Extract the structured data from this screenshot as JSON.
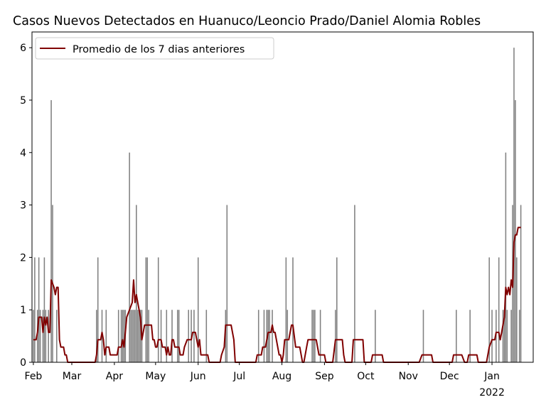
{
  "chart_data": {
    "type": "bar",
    "title": "Casos Nuevos Detectados en Huanuco/Leoncio Prado/Daniel Alomia Robles",
    "xlabel": "",
    "ylabel": "",
    "ylim": [
      0,
      6.3
    ],
    "y_ticks": [
      "0",
      "1",
      "2",
      "3",
      "4",
      "5",
      "6"
    ],
    "x_start": "2021-01-31",
    "x_end": "2022-01-31",
    "x_ticks": [
      {
        "date": "2021-02-01",
        "label": "Feb"
      },
      {
        "date": "2021-03-01",
        "label": "Mar"
      },
      {
        "date": "2021-04-01",
        "label": "Apr"
      },
      {
        "date": "2021-05-01",
        "label": "May"
      },
      {
        "date": "2021-06-01",
        "label": "Jun"
      },
      {
        "date": "2021-07-01",
        "label": "Jul"
      },
      {
        "date": "2021-08-01",
        "label": "Aug"
      },
      {
        "date": "2021-09-01",
        "label": "Sep"
      },
      {
        "date": "2021-10-01",
        "label": "Oct"
      },
      {
        "date": "2021-11-01",
        "label": "Nov"
      },
      {
        "date": "2021-12-01",
        "label": "Dec"
      },
      {
        "date": "2022-01-01",
        "label": "Jan"
      }
    ],
    "x_year_label": {
      "date": "2022-01-01",
      "label": "2022"
    },
    "grid": false,
    "legend": {
      "position": "upper left",
      "entries": [
        "Promedio de los 7 dias anteriores"
      ]
    },
    "colors": {
      "bars": "#808080",
      "line": "#800000"
    },
    "series": [
      {
        "kind": "bars",
        "points": [
          [
            "2021-02-01",
            1
          ],
          [
            "2021-02-02",
            2
          ],
          [
            "2021-02-04",
            1
          ],
          [
            "2021-02-05",
            2
          ],
          [
            "2021-02-06",
            1
          ],
          [
            "2021-02-08",
            1
          ],
          [
            "2021-02-09",
            2
          ],
          [
            "2021-02-10",
            1
          ],
          [
            "2021-02-12",
            1
          ],
          [
            "2021-02-14",
            5
          ],
          [
            "2021-02-15",
            3
          ],
          [
            "2021-02-18",
            1
          ],
          [
            "2021-03-19",
            1
          ],
          [
            "2021-03-20",
            2
          ],
          [
            "2021-03-23",
            1
          ],
          [
            "2021-03-26",
            1
          ],
          [
            "2021-04-04",
            1
          ],
          [
            "2021-04-06",
            1
          ],
          [
            "2021-04-07",
            1
          ],
          [
            "2021-04-08",
            1
          ],
          [
            "2021-04-09",
            1
          ],
          [
            "2021-04-12",
            4
          ],
          [
            "2021-04-13",
            1
          ],
          [
            "2021-04-14",
            1
          ],
          [
            "2021-04-15",
            1
          ],
          [
            "2021-04-16",
            1
          ],
          [
            "2021-04-17",
            3
          ],
          [
            "2021-04-18",
            1
          ],
          [
            "2021-04-19",
            1
          ],
          [
            "2021-04-20",
            1
          ],
          [
            "2021-04-21",
            1
          ],
          [
            "2021-04-24",
            2
          ],
          [
            "2021-04-25",
            2
          ],
          [
            "2021-04-26",
            1
          ],
          [
            "2021-05-03",
            2
          ],
          [
            "2021-05-05",
            1
          ],
          [
            "2021-05-09",
            1
          ],
          [
            "2021-05-13",
            1
          ],
          [
            "2021-05-17",
            1
          ],
          [
            "2021-05-18",
            1
          ],
          [
            "2021-05-25",
            1
          ],
          [
            "2021-05-27",
            1
          ],
          [
            "2021-05-29",
            1
          ],
          [
            "2021-06-01",
            2
          ],
          [
            "2021-06-07",
            1
          ],
          [
            "2021-06-21",
            1
          ],
          [
            "2021-06-22",
            3
          ],
          [
            "2021-07-15",
            1
          ],
          [
            "2021-07-19",
            1
          ],
          [
            "2021-07-21",
            1
          ],
          [
            "2021-07-22",
            1
          ],
          [
            "2021-07-23",
            1
          ],
          [
            "2021-07-25",
            1
          ],
          [
            "2021-08-04",
            2
          ],
          [
            "2021-08-05",
            1
          ],
          [
            "2021-08-09",
            2
          ],
          [
            "2021-08-23",
            1
          ],
          [
            "2021-08-24",
            1
          ],
          [
            "2021-08-25",
            1
          ],
          [
            "2021-08-29",
            1
          ],
          [
            "2021-09-09",
            1
          ],
          [
            "2021-09-10",
            2
          ],
          [
            "2021-09-23",
            3
          ],
          [
            "2021-10-08",
            1
          ],
          [
            "2021-11-12",
            1
          ],
          [
            "2021-12-06",
            1
          ],
          [
            "2021-12-16",
            1
          ],
          [
            "2021-12-30",
            2
          ],
          [
            "2022-01-01",
            1
          ],
          [
            "2022-01-04",
            1
          ],
          [
            "2022-01-06",
            2
          ],
          [
            "2022-01-09",
            1
          ],
          [
            "2022-01-10",
            1
          ],
          [
            "2022-01-11",
            4
          ],
          [
            "2022-01-12",
            1
          ],
          [
            "2022-01-15",
            1
          ],
          [
            "2022-01-16",
            3
          ],
          [
            "2022-01-17",
            6
          ],
          [
            "2022-01-18",
            5
          ],
          [
            "2022-01-19",
            2
          ],
          [
            "2022-01-21",
            1
          ],
          [
            "2022-01-22",
            3
          ]
        ]
      },
      {
        "kind": "line",
        "name": "Promedio de los 7 dias anteriores",
        "points": [
          [
            "2021-02-01",
            0.43
          ],
          [
            "2021-02-03",
            0.43
          ],
          [
            "2021-02-04",
            0.57
          ],
          [
            "2021-02-05",
            0.86
          ],
          [
            "2021-02-07",
            0.86
          ],
          [
            "2021-02-08",
            0.57
          ],
          [
            "2021-02-09",
            0.86
          ],
          [
            "2021-02-10",
            0.71
          ],
          [
            "2021-02-11",
            0.86
          ],
          [
            "2021-02-12",
            0.57
          ],
          [
            "2021-02-13",
            0.57
          ],
          [
            "2021-02-14",
            1.57
          ],
          [
            "2021-02-16",
            1.43
          ],
          [
            "2021-02-17",
            1.29
          ],
          [
            "2021-02-18",
            1.43
          ],
          [
            "2021-02-19",
            1.43
          ],
          [
            "2021-02-20",
            0.43
          ],
          [
            "2021-02-21",
            0.29
          ],
          [
            "2021-02-23",
            0.29
          ],
          [
            "2021-02-24",
            0.14
          ],
          [
            "2021-02-25",
            0.14
          ],
          [
            "2021-02-26",
            0
          ],
          [
            "2021-03-18",
            0
          ],
          [
            "2021-03-19",
            0.14
          ],
          [
            "2021-03-20",
            0.43
          ],
          [
            "2021-03-22",
            0.43
          ],
          [
            "2021-03-23",
            0.57
          ],
          [
            "2021-03-24",
            0.43
          ],
          [
            "2021-03-25",
            0.14
          ],
          [
            "2021-03-26",
            0.29
          ],
          [
            "2021-03-28",
            0.29
          ],
          [
            "2021-03-29",
            0.14
          ],
          [
            "2021-04-03",
            0.14
          ],
          [
            "2021-04-04",
            0.29
          ],
          [
            "2021-04-06",
            0.29
          ],
          [
            "2021-04-07",
            0.43
          ],
          [
            "2021-04-08",
            0.29
          ],
          [
            "2021-04-10",
            0.86
          ],
          [
            "2021-04-12",
            1.0
          ],
          [
            "2021-04-14",
            1.14
          ],
          [
            "2021-04-15",
            1.57
          ],
          [
            "2021-04-16",
            1.14
          ],
          [
            "2021-04-17",
            1.29
          ],
          [
            "2021-04-18",
            1.14
          ],
          [
            "2021-04-20",
            0.86
          ],
          [
            "2021-04-21",
            0.43
          ],
          [
            "2021-04-22",
            0.57
          ],
          [
            "2021-04-23",
            0.71
          ],
          [
            "2021-04-28",
            0.71
          ],
          [
            "2021-04-29",
            0.43
          ],
          [
            "2021-04-30",
            0.43
          ],
          [
            "2021-05-01",
            0.29
          ],
          [
            "2021-05-02",
            0.29
          ],
          [
            "2021-05-03",
            0.43
          ],
          [
            "2021-05-05",
            0.43
          ],
          [
            "2021-05-06",
            0.29
          ],
          [
            "2021-05-08",
            0.29
          ],
          [
            "2021-05-09",
            0.14
          ],
          [
            "2021-05-10",
            0.29
          ],
          [
            "2021-05-11",
            0.14
          ],
          [
            "2021-05-12",
            0.14
          ],
          [
            "2021-05-13",
            0.43
          ],
          [
            "2021-05-14",
            0.43
          ],
          [
            "2021-05-15",
            0.29
          ],
          [
            "2021-05-18",
            0.29
          ],
          [
            "2021-05-19",
            0.14
          ],
          [
            "2021-05-21",
            0.14
          ],
          [
            "2021-05-22",
            0.29
          ],
          [
            "2021-05-24",
            0.43
          ],
          [
            "2021-05-27",
            0.43
          ],
          [
            "2021-05-28",
            0.57
          ],
          [
            "2021-05-30",
            0.57
          ],
          [
            "2021-05-31",
            0.43
          ],
          [
            "2021-06-01",
            0.29
          ],
          [
            "2021-06-02",
            0.43
          ],
          [
            "2021-06-03",
            0.14
          ],
          [
            "2021-06-08",
            0.14
          ],
          [
            "2021-06-09",
            0
          ],
          [
            "2021-06-17",
            0
          ],
          [
            "2021-06-18",
            0.14
          ],
          [
            "2021-06-20",
            0.29
          ],
          [
            "2021-06-21",
            0.71
          ],
          [
            "2021-06-25",
            0.71
          ],
          [
            "2021-06-27",
            0.43
          ],
          [
            "2021-06-28",
            0
          ],
          [
            "2021-07-13",
            0
          ],
          [
            "2021-07-14",
            0.14
          ],
          [
            "2021-07-17",
            0.14
          ],
          [
            "2021-07-18",
            0.29
          ],
          [
            "2021-07-20",
            0.29
          ],
          [
            "2021-07-22",
            0.57
          ],
          [
            "2021-07-24",
            0.57
          ],
          [
            "2021-07-25",
            0.71
          ],
          [
            "2021-07-26",
            0.57
          ],
          [
            "2021-07-27",
            0.57
          ],
          [
            "2021-07-30",
            0.14
          ],
          [
            "2021-07-31",
            0.14
          ],
          [
            "2021-08-01",
            0
          ],
          [
            "2021-08-02",
            0.14
          ],
          [
            "2021-08-03",
            0.43
          ],
          [
            "2021-08-06",
            0.43
          ],
          [
            "2021-08-08",
            0.71
          ],
          [
            "2021-08-09",
            0.71
          ],
          [
            "2021-08-11",
            0.29
          ],
          [
            "2021-08-14",
            0.29
          ],
          [
            "2021-08-16",
            0
          ],
          [
            "2021-08-17",
            0
          ],
          [
            "2021-08-19",
            0.29
          ],
          [
            "2021-08-20",
            0.43
          ],
          [
            "2021-08-26",
            0.43
          ],
          [
            "2021-08-28",
            0.14
          ],
          [
            "2021-09-01",
            0.14
          ],
          [
            "2021-09-02",
            0
          ],
          [
            "2021-09-07",
            0
          ],
          [
            "2021-09-09",
            0.43
          ],
          [
            "2021-09-14",
            0.43
          ],
          [
            "2021-09-15",
            0.14
          ],
          [
            "2021-09-16",
            0
          ],
          [
            "2021-09-21",
            0
          ],
          [
            "2021-09-22",
            0.43
          ],
          [
            "2021-09-29",
            0.43
          ],
          [
            "2021-09-30",
            0
          ],
          [
            "2021-10-05",
            0
          ],
          [
            "2021-10-06",
            0.14
          ],
          [
            "2021-10-13",
            0.14
          ],
          [
            "2021-10-14",
            0
          ],
          [
            "2021-11-09",
            0
          ],
          [
            "2021-11-11",
            0.14
          ],
          [
            "2021-11-18",
            0.14
          ],
          [
            "2021-11-19",
            0
          ],
          [
            "2021-12-03",
            0
          ],
          [
            "2021-12-04",
            0.14
          ],
          [
            "2021-12-10",
            0.14
          ],
          [
            "2021-12-12",
            0
          ],
          [
            "2021-12-14",
            0
          ],
          [
            "2021-12-15",
            0.14
          ],
          [
            "2021-12-21",
            0.14
          ],
          [
            "2021-12-22",
            0
          ],
          [
            "2021-12-28",
            0
          ],
          [
            "2021-12-30",
            0.29
          ],
          [
            "2022-01-01",
            0.43
          ],
          [
            "2022-01-03",
            0.43
          ],
          [
            "2022-01-04",
            0.57
          ],
          [
            "2022-01-06",
            0.57
          ],
          [
            "2022-01-07",
            0.43
          ],
          [
            "2022-01-08",
            0.57
          ],
          [
            "2022-01-10",
            0.86
          ],
          [
            "2022-01-11",
            1.43
          ],
          [
            "2022-01-12",
            1.29
          ],
          [
            "2022-01-13",
            1.43
          ],
          [
            "2022-01-14",
            1.29
          ],
          [
            "2022-01-15",
            1.57
          ],
          [
            "2022-01-16",
            1.43
          ],
          [
            "2022-01-17",
            2.29
          ],
          [
            "2022-01-18",
            2.43
          ],
          [
            "2022-01-19",
            2.43
          ],
          [
            "2022-01-20",
            2.57
          ],
          [
            "2022-01-22",
            2.57
          ]
        ]
      }
    ]
  }
}
